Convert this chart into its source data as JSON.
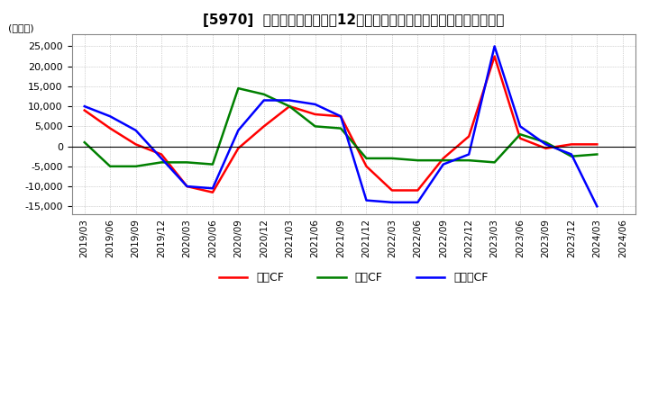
{
  "title": "[5970]  キャッシュフローの12か月移動合計の対前年同期増減額の推移",
  "ylabel": "(百万円)",
  "ylim": [
    -17000,
    28000
  ],
  "yticks": [
    -15000,
    -10000,
    -5000,
    0,
    5000,
    10000,
    15000,
    20000,
    25000
  ],
  "dates": [
    "2019/03",
    "2019/06",
    "2019/09",
    "2019/12",
    "2020/03",
    "2020/06",
    "2020/09",
    "2020/12",
    "2021/03",
    "2021/06",
    "2021/09",
    "2021/12",
    "2022/03",
    "2022/06",
    "2022/09",
    "2022/12",
    "2023/03",
    "2023/06",
    "2023/09",
    "2023/12",
    "2024/03",
    "2024/06"
  ],
  "eigyo_cf": [
    9000,
    4500,
    500,
    -2000,
    -10000,
    -11500,
    -500,
    5000,
    10000,
    8000,
    7500,
    -5000,
    -11000,
    -11000,
    -3000,
    2500,
    22500,
    2000,
    -500,
    500,
    500,
    null
  ],
  "toshi_cf": [
    1000,
    -5000,
    -5000,
    -4000,
    -4000,
    -4500,
    14500,
    13000,
    10000,
    5000,
    4500,
    -3000,
    -3000,
    -3500,
    -3500,
    -3500,
    -4000,
    3000,
    1000,
    -2500,
    -2000,
    null
  ],
  "free_cf": [
    10000,
    7500,
    4000,
    -3000,
    -10000,
    -10500,
    4000,
    11500,
    11500,
    10500,
    7500,
    -13500,
    -14000,
    -14000,
    -4500,
    -2000,
    25000,
    5000,
    500,
    -2000,
    -15000,
    null
  ],
  "eigyo_color": "#ff0000",
  "toshi_color": "#008000",
  "free_color": "#0000ff",
  "bg_color": "#ffffff",
  "grid_color": "#aaaaaa"
}
